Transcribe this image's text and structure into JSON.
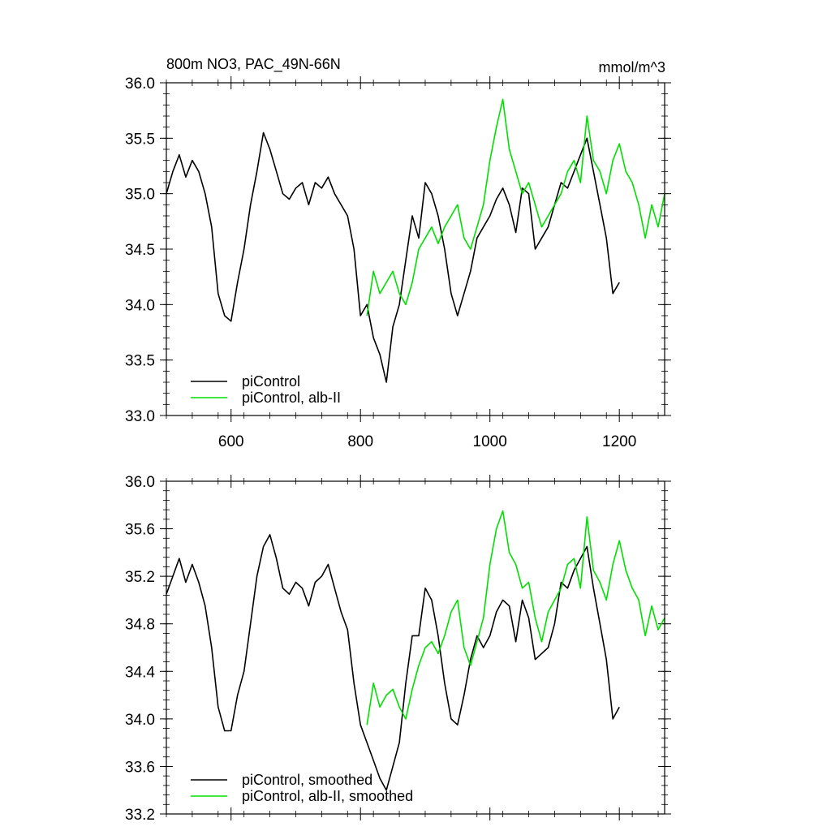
{
  "figure": {
    "title_left": "800m NO3, PAC_49N-66N",
    "title_right": "mmol/m^3",
    "colors": {
      "piControl": "#000000",
      "alb_II": "#00e000"
    }
  },
  "chart_data": [
    {
      "type": "line",
      "panel": "top",
      "xlim": [
        500,
        1270
      ],
      "ylim": [
        33.0,
        36.0
      ],
      "x_ticks": [
        600,
        800,
        1000,
        1200
      ],
      "x_tick_labels": [
        "600",
        "800",
        "1000",
        "1200"
      ],
      "y_ticks": [
        33.0,
        33.5,
        34.0,
        34.5,
        35.0,
        35.5,
        36.0
      ],
      "y_tick_labels": [
        "33.0",
        "33.5",
        "34.0",
        "34.5",
        "35.0",
        "35.5",
        "36.0"
      ],
      "legend_position": "bottom-left",
      "series": [
        {
          "name": "piControl",
          "color": "#000000",
          "x": [
            500,
            510,
            520,
            530,
            540,
            550,
            560,
            570,
            580,
            590,
            600,
            610,
            620,
            630,
            640,
            650,
            660,
            670,
            680,
            690,
            700,
            710,
            720,
            730,
            740,
            750,
            760,
            770,
            780,
            790,
            800,
            810,
            820,
            830,
            840,
            850,
            860,
            870,
            880,
            890,
            900,
            910,
            920,
            930,
            940,
            950,
            960,
            970,
            980,
            990,
            1000,
            1010,
            1020,
            1030,
            1040,
            1050,
            1060,
            1070,
            1080,
            1090,
            1100,
            1110,
            1120,
            1130,
            1140,
            1150,
            1160,
            1170,
            1180,
            1190,
            1200
          ],
          "values": [
            35.0,
            35.2,
            35.35,
            35.15,
            35.3,
            35.2,
            35.0,
            34.7,
            34.1,
            33.9,
            33.85,
            34.2,
            34.5,
            34.9,
            35.2,
            35.55,
            35.4,
            35.2,
            35.0,
            34.95,
            35.05,
            35.1,
            34.9,
            35.1,
            35.05,
            35.15,
            35.0,
            34.9,
            34.8,
            34.5,
            33.9,
            34.0,
            33.7,
            33.55,
            33.3,
            33.8,
            34.0,
            34.4,
            34.8,
            34.6,
            35.1,
            35.0,
            34.8,
            34.5,
            34.1,
            33.9,
            34.1,
            34.3,
            34.6,
            34.7,
            34.8,
            34.95,
            35.05,
            34.9,
            34.65,
            35.05,
            35.0,
            34.5,
            34.6,
            34.7,
            34.9,
            35.1,
            35.05,
            35.2,
            35.35,
            35.5,
            35.2,
            34.9,
            34.6,
            34.1,
            34.2
          ]
        },
        {
          "name": "piControl, alb-II",
          "color": "#00e000",
          "x": [
            810,
            820,
            830,
            840,
            850,
            860,
            870,
            880,
            890,
            900,
            910,
            920,
            930,
            940,
            950,
            960,
            970,
            980,
            990,
            1000,
            1010,
            1020,
            1030,
            1040,
            1050,
            1060,
            1070,
            1080,
            1090,
            1100,
            1110,
            1120,
            1130,
            1140,
            1150,
            1160,
            1170,
            1180,
            1190,
            1200,
            1210,
            1220,
            1230,
            1240,
            1250,
            1260,
            1270
          ],
          "values": [
            33.9,
            34.3,
            34.1,
            34.2,
            34.3,
            34.1,
            34.0,
            34.2,
            34.5,
            34.6,
            34.7,
            34.55,
            34.7,
            34.8,
            34.9,
            34.6,
            34.5,
            34.7,
            34.9,
            35.3,
            35.6,
            35.85,
            35.4,
            35.2,
            35.0,
            35.1,
            34.9,
            34.7,
            34.8,
            34.9,
            35.0,
            35.2,
            35.3,
            35.1,
            35.7,
            35.3,
            35.2,
            35.0,
            35.3,
            35.45,
            35.2,
            35.1,
            34.9,
            34.6,
            34.9,
            34.7,
            35.0
          ]
        }
      ]
    },
    {
      "type": "line",
      "panel": "bottom",
      "xlim": [
        500,
        1270
      ],
      "ylim": [
        33.2,
        36.0
      ],
      "x_ticks": [
        600,
        800,
        1000,
        1200
      ],
      "y_ticks": [
        33.2,
        33.6,
        34.0,
        34.4,
        34.8,
        35.2,
        35.6,
        36.0
      ],
      "y_tick_labels": [
        "33.2",
        "33.6",
        "34.0",
        "34.4",
        "34.8",
        "35.2",
        "35.6",
        "36.0"
      ],
      "legend_position": "bottom-left",
      "series": [
        {
          "name": "piControl, smoothed",
          "color": "#000000",
          "x": [
            500,
            510,
            520,
            530,
            540,
            550,
            560,
            570,
            580,
            590,
            600,
            610,
            620,
            630,
            640,
            650,
            660,
            670,
            680,
            690,
            700,
            710,
            720,
            730,
            740,
            750,
            760,
            770,
            780,
            790,
            800,
            810,
            820,
            830,
            840,
            850,
            860,
            870,
            880,
            890,
            900,
            910,
            920,
            930,
            940,
            950,
            960,
            970,
            980,
            990,
            1000,
            1010,
            1020,
            1030,
            1040,
            1050,
            1060,
            1070,
            1080,
            1090,
            1100,
            1110,
            1120,
            1130,
            1140,
            1150,
            1160,
            1170,
            1180,
            1190,
            1200
          ],
          "values": [
            35.05,
            35.2,
            35.35,
            35.15,
            35.3,
            35.15,
            34.95,
            34.6,
            34.1,
            33.9,
            33.9,
            34.2,
            34.4,
            34.8,
            35.2,
            35.45,
            35.55,
            35.35,
            35.1,
            35.05,
            35.15,
            35.1,
            34.95,
            35.15,
            35.2,
            35.3,
            35.1,
            34.9,
            34.75,
            34.3,
            33.95,
            33.8,
            33.65,
            33.5,
            33.4,
            33.6,
            33.8,
            34.3,
            34.7,
            34.7,
            35.1,
            35.0,
            34.7,
            34.3,
            34.0,
            33.95,
            34.2,
            34.5,
            34.7,
            34.6,
            34.7,
            34.9,
            35.0,
            34.95,
            34.65,
            35.0,
            34.85,
            34.5,
            34.55,
            34.6,
            34.8,
            35.15,
            35.1,
            35.25,
            35.35,
            35.45,
            35.1,
            34.8,
            34.5,
            34.0,
            34.1
          ]
        },
        {
          "name": "piControl, alb-II, smoothed",
          "color": "#00e000",
          "x": [
            810,
            820,
            830,
            840,
            850,
            860,
            870,
            880,
            890,
            900,
            910,
            920,
            930,
            940,
            950,
            960,
            970,
            980,
            990,
            1000,
            1010,
            1020,
            1030,
            1040,
            1050,
            1060,
            1070,
            1080,
            1090,
            1100,
            1110,
            1120,
            1130,
            1140,
            1150,
            1160,
            1170,
            1180,
            1190,
            1200,
            1210,
            1220,
            1230,
            1240,
            1250,
            1260,
            1270
          ],
          "values": [
            33.95,
            34.3,
            34.1,
            34.2,
            34.25,
            34.1,
            34.0,
            34.25,
            34.45,
            34.6,
            34.65,
            34.55,
            34.7,
            34.9,
            35.0,
            34.6,
            34.45,
            34.65,
            34.85,
            35.3,
            35.6,
            35.75,
            35.4,
            35.3,
            35.1,
            35.15,
            34.85,
            34.65,
            34.9,
            35.0,
            35.1,
            35.3,
            35.35,
            35.1,
            35.7,
            35.25,
            35.15,
            35.0,
            35.3,
            35.5,
            35.25,
            35.1,
            35.0,
            34.7,
            34.95,
            34.75,
            34.85
          ]
        }
      ]
    }
  ]
}
